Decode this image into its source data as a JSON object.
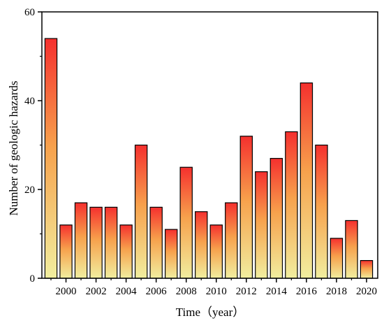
{
  "chart_data": {
    "type": "bar",
    "title": "",
    "xlabel": "Time（year）",
    "ylabel": "Number of geologic hazards",
    "categories": [
      1999,
      2000,
      2001,
      2002,
      2003,
      2004,
      2005,
      2006,
      2007,
      2008,
      2009,
      2010,
      2011,
      2012,
      2013,
      2014,
      2015,
      2016,
      2017,
      2018,
      2019,
      2020
    ],
    "values": [
      54,
      12,
      17,
      16,
      16,
      12,
      30,
      16,
      11,
      25,
      15,
      12,
      17,
      32,
      24,
      27,
      33,
      44,
      30,
      9,
      13,
      4
    ],
    "x_tick_labels": [
      "2000",
      "2002",
      "2004",
      "2006",
      "2008",
      "2010",
      "2012",
      "2014",
      "2016",
      "2018",
      "2020"
    ],
    "y_tick_labels": [
      "0",
      "20",
      "40",
      "60"
    ],
    "ylim": [
      0,
      60
    ],
    "grid": false,
    "legend": "none",
    "colors": {
      "bar_top": "#f5302e",
      "bar_mid": "#f7a14c",
      "bar_bottom": "#f1ee9f",
      "bar_outline": "#000000",
      "axis": "#000000"
    }
  }
}
